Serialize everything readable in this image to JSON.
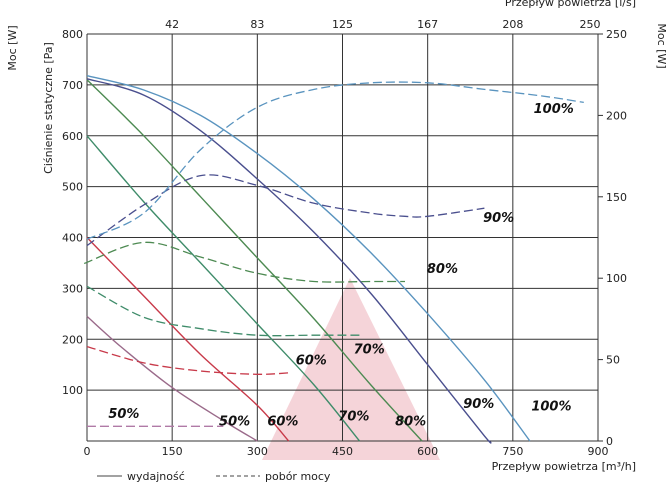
{
  "chart_data": {
    "type": "line",
    "xlabel": "Przepływ powietrza [m³/h]",
    "x2label": "Przepływ powietrza [l/s]",
    "ylabel": "Ciśnienie statyczne [Pa]",
    "y2label": "Moc [W]",
    "y3label": "Moc [W]",
    "xlim": [
      0,
      900
    ],
    "ylim": [
      0,
      800
    ],
    "y2lim": [
      0,
      250
    ],
    "x_ticks": [
      0,
      150,
      300,
      450,
      600,
      750,
      900
    ],
    "x2_ticks": [
      {
        "at": 150,
        "label": "42"
      },
      {
        "at": 300,
        "label": "83"
      },
      {
        "at": 450,
        "label": "125"
      },
      {
        "at": 600,
        "label": "167"
      },
      {
        "at": 750,
        "label": "208"
      },
      {
        "at": 900,
        "label": "250"
      }
    ],
    "y_ticks": [
      100,
      200,
      300,
      400,
      500,
      600,
      700,
      800
    ],
    "y2_ticks": [
      0,
      50,
      100,
      150,
      200,
      250
    ],
    "grid": true,
    "legend": {
      "solid_label": "wydajność",
      "dashed_label": "pobór mocy"
    },
    "series": [
      {
        "kind": "pressure",
        "label": "50%",
        "color": "#9a6a8a",
        "points": [
          [
            0,
            245
          ],
          [
            60,
            185
          ],
          [
            150,
            105
          ],
          [
            240,
            40
          ],
          [
            300,
            0
          ]
        ]
      },
      {
        "kind": "pressure",
        "label": "60%",
        "color": "#c83a4a",
        "points": [
          [
            0,
            400
          ],
          [
            100,
            285
          ],
          [
            200,
            170
          ],
          [
            300,
            70
          ],
          [
            355,
            0
          ]
        ]
      },
      {
        "kind": "pressure",
        "label": "70%",
        "color": "#3f8c6a",
        "points": [
          [
            0,
            600
          ],
          [
            100,
            470
          ],
          [
            200,
            350
          ],
          [
            300,
            230
          ],
          [
            400,
            110
          ],
          [
            480,
            0
          ]
        ]
      },
      {
        "kind": "pressure",
        "label": "80%",
        "color": "#4d8a52",
        "points": [
          [
            0,
            710
          ],
          [
            100,
            600
          ],
          [
            200,
            480
          ],
          [
            300,
            360
          ],
          [
            400,
            240
          ],
          [
            500,
            110
          ],
          [
            590,
            0
          ]
        ]
      },
      {
        "kind": "pressure",
        "label": "90%",
        "color": "#4a4f8e",
        "points": [
          [
            0,
            712
          ],
          [
            100,
            680
          ],
          [
            200,
            610
          ],
          [
            300,
            515
          ],
          [
            400,
            410
          ],
          [
            500,
            290
          ],
          [
            600,
            150
          ],
          [
            700,
            10
          ],
          [
            710,
            0
          ]
        ]
      },
      {
        "kind": "pressure",
        "label": "100%",
        "color": "#5a94bf",
        "points": [
          [
            0,
            718
          ],
          [
            100,
            690
          ],
          [
            200,
            640
          ],
          [
            300,
            565
          ],
          [
            400,
            475
          ],
          [
            500,
            370
          ],
          [
            600,
            250
          ],
          [
            700,
            120
          ],
          [
            780,
            0
          ]
        ]
      },
      {
        "kind": "power",
        "label": "50%",
        "color": "#b07aa6",
        "points": [
          [
            0,
            9
          ],
          [
            60,
            9
          ],
          [
            120,
            9
          ],
          [
            180,
            9
          ],
          [
            240,
            9
          ]
        ]
      },
      {
        "kind": "power",
        "label": "60%",
        "color": "#c83a4a",
        "points": [
          [
            0,
            58
          ],
          [
            100,
            48
          ],
          [
            200,
            43
          ],
          [
            300,
            41
          ],
          [
            360,
            42
          ]
        ]
      },
      {
        "kind": "power",
        "label": "70%",
        "color": "#3f8c6a",
        "points": [
          [
            0,
            95
          ],
          [
            100,
            76
          ],
          [
            200,
            69
          ],
          [
            300,
            65
          ],
          [
            400,
            65
          ],
          [
            480,
            65
          ]
        ]
      },
      {
        "kind": "power",
        "label": "80%",
        "color": "#4d8a52",
        "points": [
          [
            -5,
            109
          ],
          [
            100,
            122
          ],
          [
            200,
            113
          ],
          [
            300,
            103
          ],
          [
            400,
            98
          ],
          [
            500,
            98
          ],
          [
            560,
            98
          ]
        ]
      },
      {
        "kind": "power",
        "label": "90%",
        "color": "#4a4f8e",
        "points": [
          [
            0,
            120
          ],
          [
            100,
            145
          ],
          [
            200,
            163
          ],
          [
            300,
            157
          ],
          [
            400,
            146
          ],
          [
            500,
            140
          ],
          [
            560,
            138
          ],
          [
            600,
            138
          ],
          [
            700,
            143
          ]
        ]
      },
      {
        "kind": "power",
        "label": "100%",
        "color": "#5a94bf",
        "points": [
          [
            0,
            124
          ],
          [
            100,
            140
          ],
          [
            200,
            179
          ],
          [
            300,
            205
          ],
          [
            400,
            216
          ],
          [
            500,
            220
          ],
          [
            600,
            220
          ],
          [
            700,
            216
          ],
          [
            800,
            212
          ],
          [
            875,
            208
          ]
        ]
      }
    ],
    "labels": [
      {
        "text": "50%",
        "x": 65,
        "y": 45
      },
      {
        "text": "50%",
        "x": 260,
        "y": 30
      },
      {
        "text": "60%",
        "x": 345,
        "y": 30
      },
      {
        "text": "70%",
        "x": 470,
        "y": 40
      },
      {
        "text": "80%",
        "x": 570,
        "y": 30
      },
      {
        "text": "90%",
        "x": 690,
        "y": 65
      },
      {
        "text": "100%",
        "x": 818,
        "y": 60
      },
      {
        "text": "60%",
        "x": 395,
        "y": 150
      },
      {
        "text": "70%",
        "x": 497,
        "y": 172
      },
      {
        "text": "80%",
        "x": 626,
        "y": 330
      },
      {
        "text": "90%",
        "x": 725,
        "y": 430
      },
      {
        "text": "100%",
        "x": 822,
        "y": 645
      }
    ]
  }
}
